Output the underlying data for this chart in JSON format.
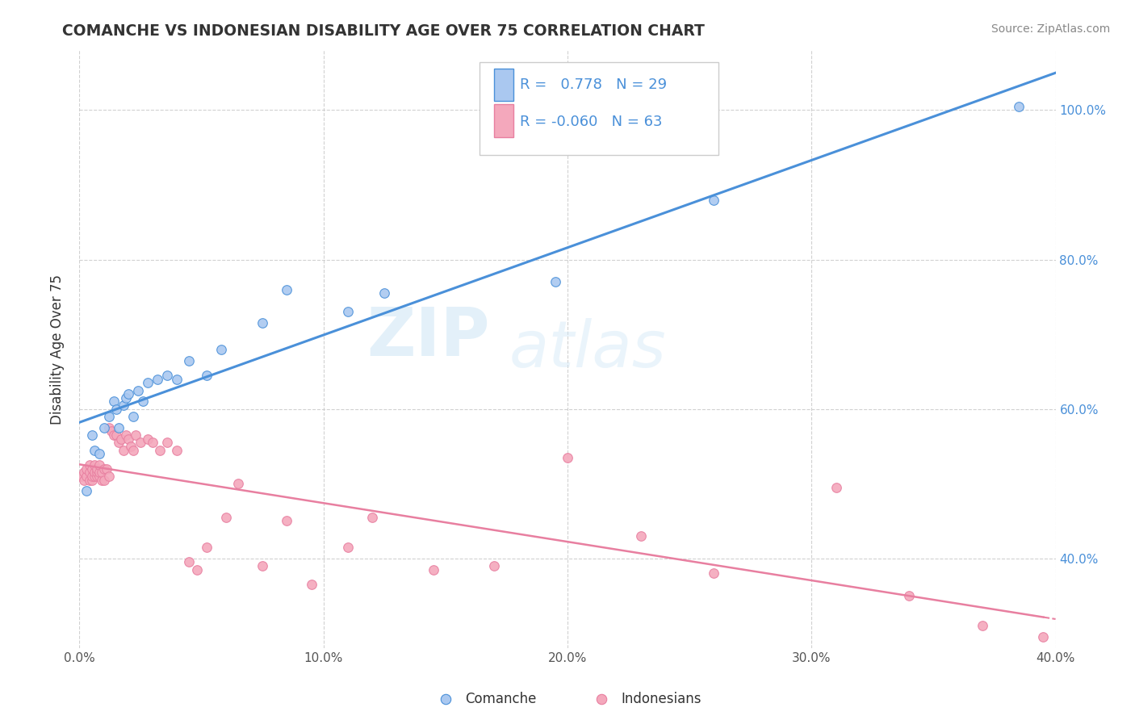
{
  "title": "COMANCHE VS INDONESIAN DISABILITY AGE OVER 75 CORRELATION CHART",
  "source": "Source: ZipAtlas.com",
  "ylabel_label": "Disability Age Over 75",
  "xmin": 0.0,
  "xmax": 0.4,
  "ymin": 0.28,
  "ymax": 1.08,
  "xtick_labels": [
    "0.0%",
    "10.0%",
    "20.0%",
    "30.0%",
    "40.0%"
  ],
  "xtick_values": [
    0.0,
    0.1,
    0.2,
    0.3,
    0.4
  ],
  "ytick_labels": [
    "40.0%",
    "60.0%",
    "80.0%",
    "100.0%"
  ],
  "ytick_values": [
    0.4,
    0.6,
    0.8,
    1.0
  ],
  "comanche_color": "#aac8f0",
  "indonesian_color": "#f4a8bc",
  "comanche_line_color": "#4a90d9",
  "indonesian_line_color": "#e87fa0",
  "legend_r_comanche": "0.778",
  "legend_n_comanche": "29",
  "legend_r_indonesian": "-0.060",
  "legend_n_indonesian": "63",
  "watermark_zip": "ZIP",
  "watermark_atlas": "atlas",
  "comanche_x": [
    0.003,
    0.005,
    0.006,
    0.008,
    0.01,
    0.012,
    0.014,
    0.015,
    0.016,
    0.018,
    0.019,
    0.02,
    0.022,
    0.024,
    0.026,
    0.028,
    0.032,
    0.036,
    0.04,
    0.045,
    0.052,
    0.058,
    0.075,
    0.085,
    0.11,
    0.125,
    0.195,
    0.26,
    0.385
  ],
  "comanche_y": [
    0.49,
    0.565,
    0.545,
    0.54,
    0.575,
    0.59,
    0.61,
    0.6,
    0.575,
    0.605,
    0.615,
    0.62,
    0.59,
    0.625,
    0.61,
    0.635,
    0.64,
    0.645,
    0.64,
    0.665,
    0.645,
    0.68,
    0.715,
    0.76,
    0.73,
    0.755,
    0.77,
    0.88,
    1.005
  ],
  "indonesian_x": [
    0.001,
    0.002,
    0.002,
    0.003,
    0.003,
    0.004,
    0.004,
    0.004,
    0.005,
    0.005,
    0.005,
    0.006,
    0.006,
    0.006,
    0.007,
    0.007,
    0.007,
    0.008,
    0.008,
    0.008,
    0.009,
    0.009,
    0.01,
    0.01,
    0.011,
    0.012,
    0.012,
    0.013,
    0.014,
    0.015,
    0.016,
    0.017,
    0.018,
    0.019,
    0.02,
    0.021,
    0.022,
    0.023,
    0.025,
    0.028,
    0.03,
    0.033,
    0.036,
    0.04,
    0.045,
    0.048,
    0.052,
    0.06,
    0.065,
    0.075,
    0.085,
    0.095,
    0.11,
    0.12,
    0.145,
    0.17,
    0.2,
    0.23,
    0.26,
    0.31,
    0.34,
    0.37,
    0.395
  ],
  "indonesian_y": [
    0.51,
    0.505,
    0.515,
    0.51,
    0.52,
    0.505,
    0.515,
    0.525,
    0.505,
    0.51,
    0.52,
    0.51,
    0.515,
    0.525,
    0.51,
    0.515,
    0.52,
    0.51,
    0.515,
    0.525,
    0.505,
    0.515,
    0.505,
    0.52,
    0.52,
    0.51,
    0.575,
    0.57,
    0.565,
    0.565,
    0.555,
    0.56,
    0.545,
    0.565,
    0.56,
    0.55,
    0.545,
    0.565,
    0.555,
    0.56,
    0.555,
    0.545,
    0.555,
    0.545,
    0.395,
    0.385,
    0.415,
    0.455,
    0.5,
    0.39,
    0.45,
    0.365,
    0.415,
    0.455,
    0.385,
    0.39,
    0.535,
    0.43,
    0.38,
    0.495,
    0.35,
    0.31,
    0.295
  ]
}
